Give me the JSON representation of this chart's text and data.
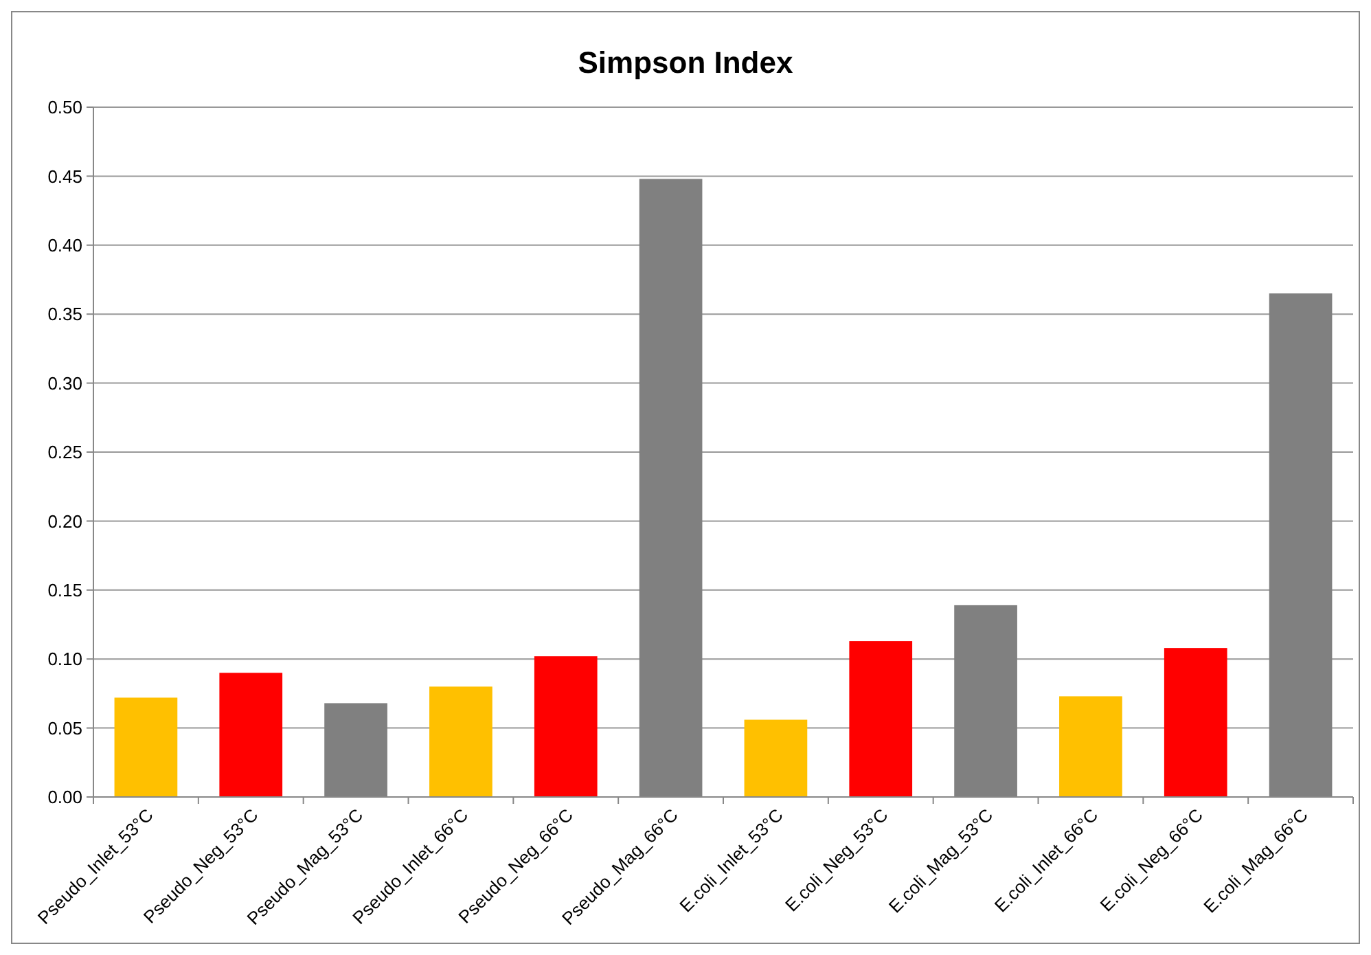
{
  "chart_data": {
    "type": "bar",
    "title": "Simpson Index",
    "categories": [
      "Pseudo_Inlet_53°C",
      "Pseudo_Neg_53°C",
      "Pseudo_Mag_53°C",
      "Pseudo_Inlet_66°C",
      "Pseudo_Neg_66°C",
      "Pseudo_Mag_66°C",
      "E.coli_Inlet_53°C",
      "E.coli_Neg_53°C",
      "E.coli_Mag_53°C",
      "E.coli_Inlet_66°C",
      "E.coli_Neg_66°C",
      "E.coli_Mag_66°C"
    ],
    "values": [
      0.072,
      0.09,
      0.068,
      0.08,
      0.102,
      0.448,
      0.056,
      0.113,
      0.139,
      0.073,
      0.108,
      0.365
    ],
    "colors": [
      "#ffc000",
      "#ff0000",
      "#808080",
      "#ffc000",
      "#ff0000",
      "#808080",
      "#ffc000",
      "#ff0000",
      "#808080",
      "#ffc000",
      "#ff0000",
      "#808080"
    ],
    "ylim": [
      0,
      0.5
    ],
    "yticks": [
      {
        "value": 0,
        "label": "0.00"
      },
      {
        "value": 0.05,
        "label": "0.05"
      },
      {
        "value": 0.1,
        "label": "0.10"
      },
      {
        "value": 0.15,
        "label": "0.15"
      },
      {
        "value": 0.2,
        "label": "0.20"
      },
      {
        "value": 0.25,
        "label": "0.25"
      },
      {
        "value": 0.3,
        "label": "0.30"
      },
      {
        "value": 0.35,
        "label": "0.35"
      },
      {
        "value": 0.4,
        "label": "0.40"
      },
      {
        "value": 0.45,
        "label": "0.45"
      },
      {
        "value": 0.5,
        "label": "0.50"
      }
    ],
    "grid": "y"
  }
}
